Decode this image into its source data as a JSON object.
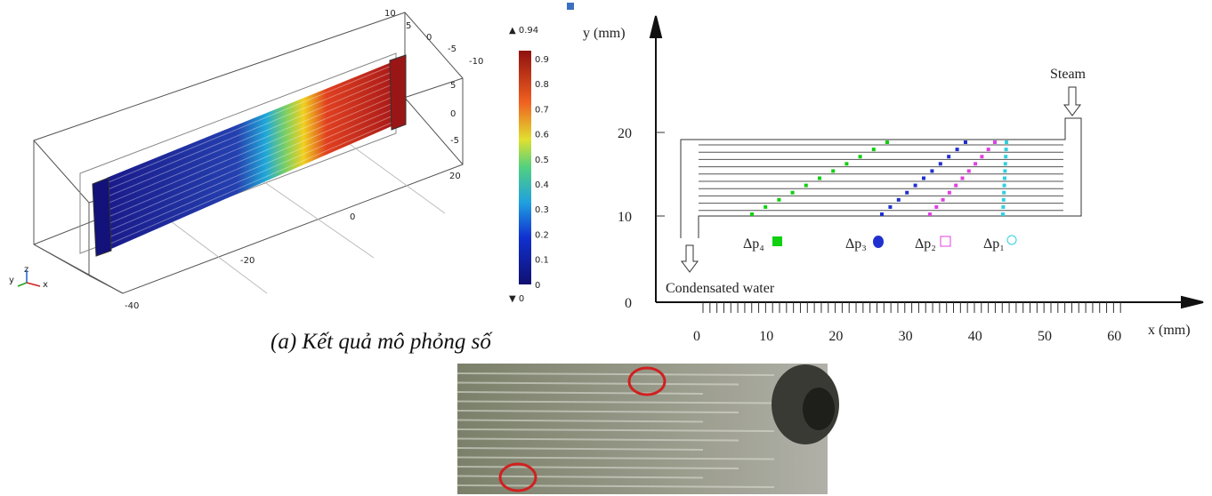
{
  "simulation": {
    "axis_labels": [
      "10",
      "5",
      "0",
      "-5",
      "-10",
      "5",
      "0",
      "-5",
      "20",
      "0",
      "-20",
      "-40"
    ],
    "triad": [
      "z",
      "y",
      "x"
    ],
    "colorbar": {
      "max": "▲ 0.94",
      "ticks": [
        "0.9",
        "0.8",
        "0.7",
        "0.6",
        "0.5",
        "0.4",
        "0.3",
        "0.2",
        "0.1",
        "0"
      ],
      "min": "▼ 0"
    }
  },
  "diagram": {
    "y_label": "y (mm)",
    "x_label": "x (mm)",
    "yticks": [
      "20",
      "10",
      "0"
    ],
    "xticks": [
      "0",
      "10",
      "20",
      "30",
      "40",
      "50",
      "60"
    ],
    "inlet": "Steam",
    "outlet": "Condensated  water",
    "legend": [
      "Δp₄",
      "Δp₃",
      "Δp₂",
      "Δp₁"
    ]
  },
  "caption": "(a) Kết quả mô phỏng số"
}
